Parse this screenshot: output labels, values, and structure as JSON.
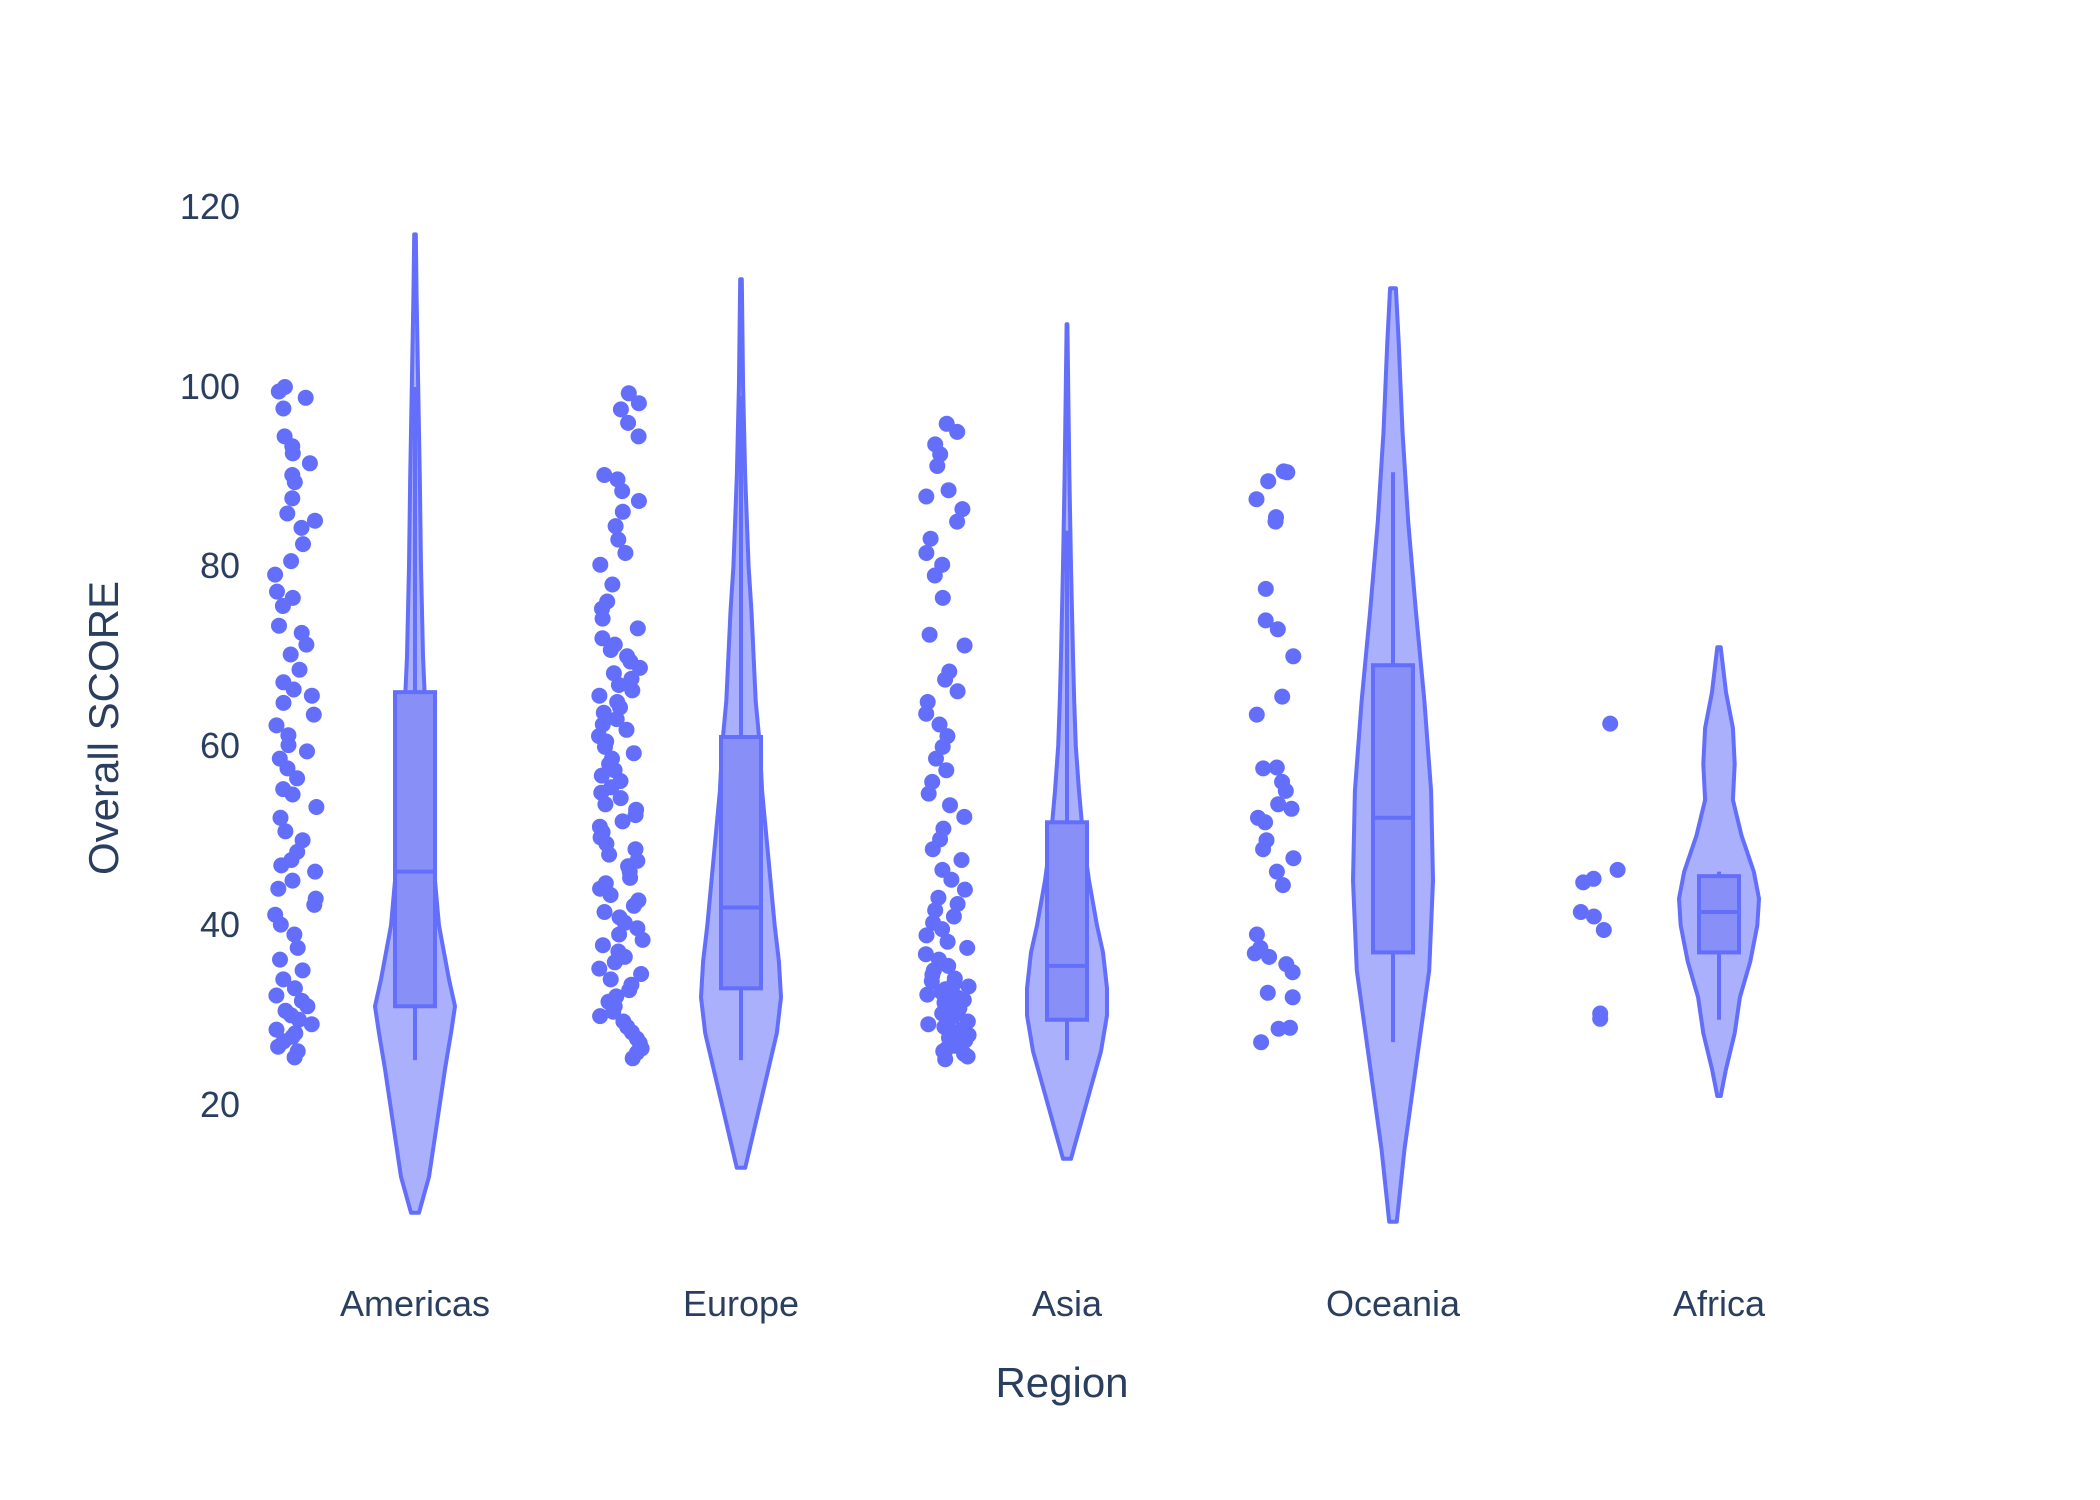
{
  "chart_data": {
    "type": "violin",
    "xlabel": "Region",
    "ylabel": "Overall SCORE",
    "ylim": [
      5,
      123
    ],
    "yticks": [
      20,
      40,
      60,
      80,
      100,
      120
    ],
    "grid": false,
    "legend": "none",
    "colors": {
      "line": "#636efa",
      "fill": "#aab0fb",
      "box_fill": "#8890f8",
      "text": "#2a3f5f"
    },
    "categories": [
      "Americas",
      "Europe",
      "Asia",
      "Oceania",
      "Africa"
    ],
    "violins": [
      {
        "category": "Americas",
        "box": {
          "q1": 31,
          "median": 46,
          "q3": 66,
          "whisker_low": 25,
          "whisker_high": 100
        },
        "density": [
          [
            8,
            0.01
          ],
          [
            12,
            0.035
          ],
          [
            18,
            0.055
          ],
          [
            24,
            0.075
          ],
          [
            28,
            0.09
          ],
          [
            31,
            0.1
          ],
          [
            34,
            0.085
          ],
          [
            40,
            0.06
          ],
          [
            50,
            0.04
          ],
          [
            60,
            0.03
          ],
          [
            70,
            0.02
          ],
          [
            80,
            0.015
          ],
          [
            90,
            0.012
          ],
          [
            100,
            0.008
          ],
          [
            110,
            0.004
          ],
          [
            117,
            0.002
          ]
        ],
        "points": [
          25.3,
          26.0,
          26.5,
          27.1,
          27.6,
          28.0,
          28.4,
          29.0,
          29.5,
          30.0,
          30.5,
          31.0,
          31.6,
          32.2,
          33.0,
          34.0,
          35.0,
          36.2,
          37.5,
          39.0,
          40.1,
          41.2,
          42.3,
          43.0,
          44.1,
          45.0,
          46.0,
          46.7,
          47.3,
          48.2,
          49.5,
          50.5,
          52.0,
          53.2,
          54.6,
          55.2,
          56.4,
          57.5,
          58.6,
          59.4,
          60.1,
          61.2,
          62.3,
          63.5,
          64.8,
          65.6,
          66.3,
          67.1,
          68.5,
          70.2,
          71.3,
          72.6,
          73.4,
          75.6,
          76.5,
          77.2,
          79.1,
          80.6,
          82.5,
          84.3,
          85.1,
          85.9,
          87.6,
          89.4,
          90.2,
          91.5,
          92.6,
          93.4,
          94.5,
          97.6,
          98.8,
          99.5,
          100.0
        ]
      },
      {
        "category": "Europe",
        "box": {
          "q1": 33,
          "median": 42,
          "q3": 61,
          "whisker_low": 25,
          "whisker_high": 99
        },
        "density": [
          [
            13,
            0.01
          ],
          [
            18,
            0.035
          ],
          [
            23,
            0.06
          ],
          [
            28,
            0.085
          ],
          [
            32,
            0.095
          ],
          [
            36,
            0.09
          ],
          [
            40,
            0.08
          ],
          [
            45,
            0.07
          ],
          [
            50,
            0.06
          ],
          [
            55,
            0.05
          ],
          [
            60,
            0.045
          ],
          [
            65,
            0.035
          ],
          [
            70,
            0.03
          ],
          [
            75,
            0.025
          ],
          [
            80,
            0.018
          ],
          [
            90,
            0.01
          ],
          [
            100,
            0.005
          ],
          [
            112,
            0.002
          ]
        ],
        "points": [
          25.2,
          25.8,
          26.3,
          26.9,
          27.4,
          28.1,
          28.7,
          29.3,
          29.9,
          30.4,
          31.0,
          31.5,
          32.1,
          32.8,
          33.4,
          34.0,
          34.6,
          35.2,
          35.9,
          36.5,
          37.1,
          37.8,
          38.4,
          39.0,
          39.7,
          40.3,
          40.9,
          41.5,
          42.2,
          42.8,
          43.4,
          44.1,
          44.7,
          45.3,
          46.0,
          46.6,
          47.2,
          47.9,
          48.5,
          49.1,
          49.8,
          50.4,
          51.0,
          51.6,
          52.3,
          52.9,
          53.5,
          54.2,
          54.8,
          55.4,
          56.1,
          56.7,
          57.3,
          58.0,
          58.6,
          59.2,
          59.9,
          60.5,
          61.1,
          61.8,
          62.4,
          63.0,
          63.7,
          64.3,
          64.9,
          65.6,
          66.2,
          66.8,
          67.5,
          68.1,
          68.7,
          69.4,
          70.0,
          70.7,
          71.3,
          72.0,
          73.1,
          74.2,
          75.3,
          76.1,
          78.0,
          80.2,
          81.5,
          83.0,
          84.5,
          86.1,
          87.3,
          88.4,
          89.7,
          90.2,
          94.5,
          96.0,
          97.5,
          98.2,
          99.3
        ]
      },
      {
        "category": "Asia",
        "box": {
          "q1": 29.5,
          "median": 35.5,
          "q3": 51.5,
          "whisker_low": 25,
          "whisker_high": 84
        },
        "density": [
          [
            14,
            0.01
          ],
          [
            18,
            0.035
          ],
          [
            22,
            0.06
          ],
          [
            26,
            0.085
          ],
          [
            30,
            0.1
          ],
          [
            33,
            0.1
          ],
          [
            37,
            0.09
          ],
          [
            40,
            0.075
          ],
          [
            45,
            0.055
          ],
          [
            50,
            0.04
          ],
          [
            55,
            0.03
          ],
          [
            60,
            0.022
          ],
          [
            65,
            0.018
          ],
          [
            70,
            0.015
          ],
          [
            80,
            0.01
          ],
          [
            90,
            0.006
          ],
          [
            100,
            0.003
          ],
          [
            107,
            0.001
          ]
        ],
        "points": [
          25.1,
          25.4,
          25.7,
          26.0,
          26.3,
          26.6,
          26.9,
          27.2,
          27.5,
          27.8,
          28.1,
          28.4,
          28.7,
          29.0,
          29.3,
          29.6,
          29.9,
          30.2,
          30.5,
          30.8,
          31.1,
          31.4,
          31.7,
          32.0,
          32.3,
          32.6,
          32.9,
          33.2,
          33.5,
          33.8,
          34.1,
          34.5,
          35.0,
          35.5,
          36.2,
          36.8,
          37.5,
          38.2,
          38.9,
          39.6,
          40.3,
          41.0,
          41.7,
          42.4,
          43.1,
          44.0,
          45.1,
          46.2,
          47.3,
          48.5,
          49.6,
          50.8,
          52.1,
          53.4,
          54.7,
          56.0,
          57.3,
          58.6,
          59.9,
          61.1,
          62.4,
          63.6,
          64.9,
          66.1,
          67.4,
          68.3,
          71.2,
          72.4,
          76.5,
          79.0,
          80.2,
          81.5,
          83.1,
          85.0,
          86.4,
          87.8,
          88.5,
          91.2,
          92.5,
          93.6,
          95.0,
          95.9
        ]
      },
      {
        "category": "Oceania",
        "box": {
          "q1": 37,
          "median": 52,
          "q3": 69,
          "whisker_low": 27,
          "whisker_high": 90.5
        },
        "density": [
          [
            7,
            0.004
          ],
          [
            15,
            0.012
          ],
          [
            25,
            0.025
          ],
          [
            35,
            0.038
          ],
          [
            45,
            0.042
          ],
          [
            55,
            0.04
          ],
          [
            65,
            0.033
          ],
          [
            75,
            0.024
          ],
          [
            85,
            0.016
          ],
          [
            95,
            0.01
          ],
          [
            105,
            0.006
          ],
          [
            111,
            0.003
          ]
        ],
        "points": [
          27.0,
          28.5,
          28.6,
          32.0,
          32.5,
          34.8,
          35.7,
          36.5,
          36.9,
          37.5,
          39.0,
          44.5,
          46.0,
          47.5,
          48.5,
          49.5,
          51.5,
          52.0,
          53.0,
          53.5,
          55.0,
          56.0,
          57.5,
          57.6,
          63.5,
          65.5,
          70.0,
          73.0,
          74.0,
          77.5,
          85.0,
          85.5,
          87.5,
          89.5,
          90.5,
          90.6
        ]
      },
      {
        "category": "Africa",
        "box": {
          "q1": 37,
          "median": 41.5,
          "q3": 45.5,
          "whisker_low": 29.5,
          "whisker_high": 46
        },
        "density": [
          [
            21,
            0.005
          ],
          [
            24,
            0.02
          ],
          [
            28,
            0.045
          ],
          [
            32,
            0.06
          ],
          [
            36,
            0.09
          ],
          [
            40,
            0.11
          ],
          [
            43,
            0.115
          ],
          [
            46,
            0.1
          ],
          [
            50,
            0.065
          ],
          [
            54,
            0.04
          ],
          [
            58,
            0.045
          ],
          [
            62,
            0.04
          ],
          [
            66,
            0.02
          ],
          [
            71,
            0.005
          ]
        ],
        "points": [
          29.6,
          30.2,
          39.5,
          41.0,
          41.5,
          44.8,
          45.2,
          46.2,
          62.5
        ]
      }
    ]
  }
}
